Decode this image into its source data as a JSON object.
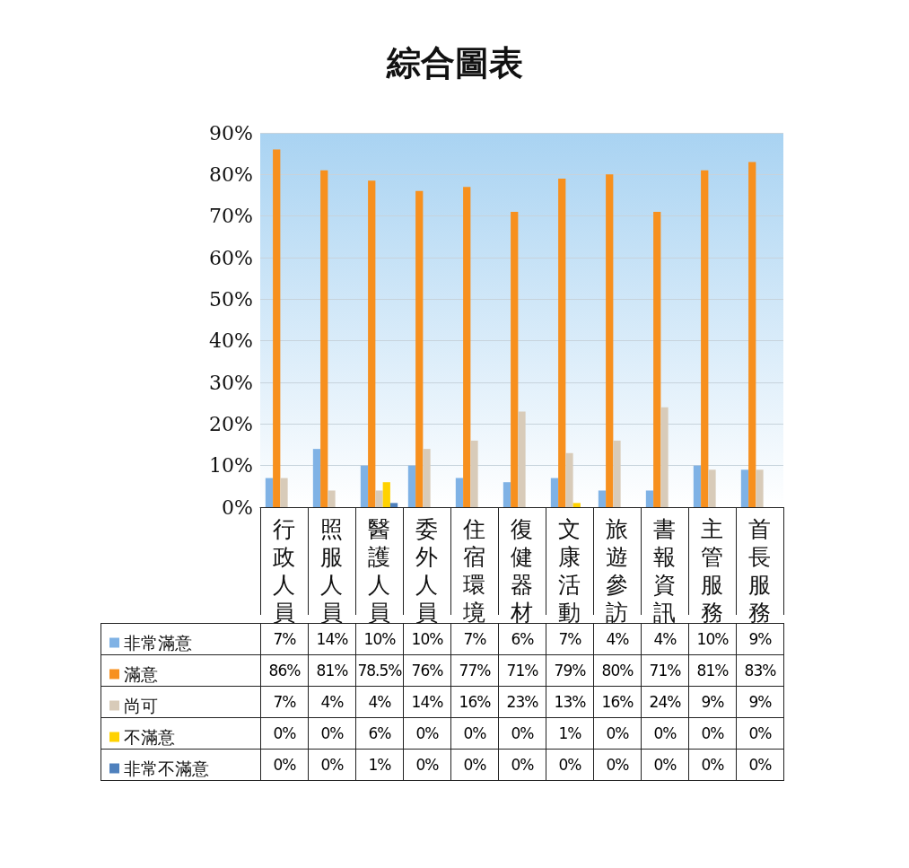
{
  "chart_data": {
    "type": "bar",
    "title": "綜合圖表",
    "categories": [
      "行政人員",
      "照服人員",
      "醫護人員",
      "委外人員",
      "住宿環境",
      "復健器材",
      "文康活動",
      "旅遊參訪",
      "書報資訊",
      "主管服務",
      "首長服務"
    ],
    "series": [
      {
        "name": "非常滿意",
        "color": "#7fb2e5",
        "values": [
          7,
          14,
          10,
          10,
          7,
          6,
          7,
          4,
          4,
          10,
          9
        ],
        "value_labels": [
          "7%",
          "14%",
          "10%",
          "10%",
          "7%",
          "6%",
          "7%",
          "4%",
          "4%",
          "10%",
          "9%"
        ]
      },
      {
        "name": "滿意",
        "color": "#f7901e",
        "values": [
          86,
          81,
          78.5,
          76,
          77,
          71,
          79,
          80,
          71,
          81,
          83
        ],
        "value_labels": [
          "86%",
          "81%",
          "78.5%",
          "76%",
          "77%",
          "71%",
          "79%",
          "80%",
          "71%",
          "81%",
          "83%"
        ]
      },
      {
        "name": "尚可",
        "color": "#d8cbb9",
        "values": [
          7,
          4,
          4,
          14,
          16,
          23,
          13,
          16,
          24,
          9,
          9
        ],
        "value_labels": [
          "7%",
          "4%",
          "4%",
          "14%",
          "16%",
          "23%",
          "13%",
          "16%",
          "24%",
          "9%",
          "9%"
        ]
      },
      {
        "name": "不滿意",
        "color": "#ffd200",
        "values": [
          0,
          0,
          6,
          0,
          0,
          0,
          1,
          0,
          0,
          0,
          0
        ],
        "value_labels": [
          "0%",
          "0%",
          "6%",
          "0%",
          "0%",
          "0%",
          "1%",
          "0%",
          "0%",
          "0%",
          "0%"
        ]
      },
      {
        "name": "非常不滿意",
        "color": "#4f81bd",
        "values": [
          0,
          0,
          1,
          0,
          0,
          0,
          0,
          0,
          0,
          0,
          0
        ],
        "value_labels": [
          "0%",
          "0%",
          "1%",
          "0%",
          "0%",
          "0%",
          "0%",
          "0%",
          "0%",
          "0%",
          "0%"
        ]
      }
    ],
    "ylim": [
      0,
      90
    ],
    "yticks": [
      {
        "value": 0,
        "label": "0%"
      },
      {
        "value": 10,
        "label": "10%"
      },
      {
        "value": 20,
        "label": "20%"
      },
      {
        "value": 30,
        "label": "30%"
      },
      {
        "value": 40,
        "label": "40%"
      },
      {
        "value": 50,
        "label": "50%"
      },
      {
        "value": 60,
        "label": "60%"
      },
      {
        "value": 70,
        "label": "70%"
      },
      {
        "value": 80,
        "label": "80%"
      },
      {
        "value": 90,
        "label": "90%"
      }
    ],
    "grid": "y",
    "legend": "bottom left"
  }
}
